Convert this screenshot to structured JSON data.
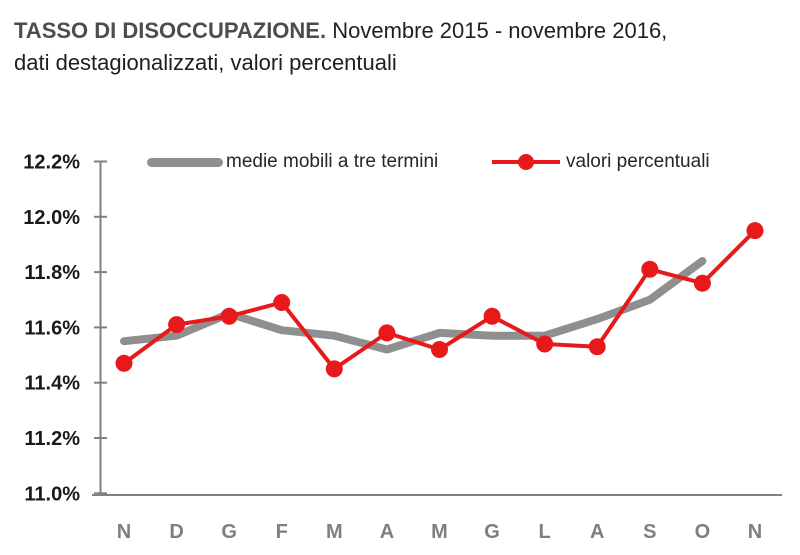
{
  "title": {
    "bold": "TASSO DI DISOCCUPAZIONE.",
    "period": " Novembre 2015 - novembre 2016,",
    "line2": "dati destagionalizzati, valori percentuali"
  },
  "legend": {
    "items": [
      {
        "label": "medie mobili a tre termini"
      },
      {
        "label": "valori percentuali"
      }
    ]
  },
  "colors": {
    "moving_average": "#8f8f8f",
    "values": "#e8191a",
    "axis": "#808080",
    "ytick_text": "#1a1a1a",
    "xtick_text": "#7f7f7f"
  },
  "chart_data": {
    "type": "line",
    "title": "TASSO DI DISOCCUPAZIONE. Novembre 2015 - novembre 2016, dati destagionalizzati, valori percentuali",
    "categories": [
      "N",
      "D",
      "G",
      "F",
      "M",
      "A",
      "M",
      "G",
      "L",
      "A",
      "S",
      "O",
      "N"
    ],
    "series": [
      {
        "name": "medie mobili a tre termini",
        "color": "#8f8f8f",
        "line_width": 8,
        "markers": false,
        "values": [
          11.55,
          11.57,
          11.65,
          11.59,
          11.57,
          11.52,
          11.58,
          11.57,
          11.57,
          11.63,
          11.7,
          11.84,
          null
        ]
      },
      {
        "name": "valori percentuali",
        "color": "#e8191a",
        "line_width": 4,
        "markers": true,
        "values": [
          11.47,
          11.61,
          11.64,
          11.69,
          11.45,
          11.58,
          11.52,
          11.64,
          11.54,
          11.53,
          11.81,
          11.76,
          11.95
        ]
      }
    ],
    "ylim": [
      11.0,
      12.2
    ],
    "ytick_step": 0.2,
    "ytick_labels": [
      "11.0%",
      "11.2%",
      "11.4%",
      "11.6%",
      "11.8%",
      "12.0%",
      "12.2%"
    ],
    "grid": false,
    "legend_position": "top-inside"
  }
}
